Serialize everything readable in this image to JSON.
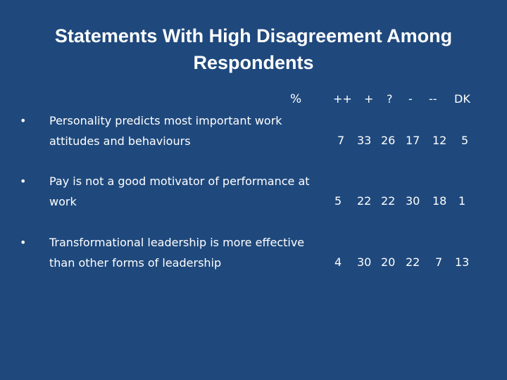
{
  "title": "Statements With High Disagreement Among Respondents",
  "columns": {
    "pct_label": "%",
    "headers": [
      "++",
      "+",
      "?",
      "-",
      "--",
      "DK"
    ]
  },
  "statements": [
    {
      "bullet": "•",
      "text": "Personality predicts most important work attitudes and behaviours",
      "values": [
        "7",
        "33",
        "26",
        "17",
        "12",
        "5"
      ]
    },
    {
      "bullet": "•",
      "text": "Pay is not a good motivator of performance at work",
      "values": [
        "5",
        "22",
        "22",
        "30",
        "18",
        "1"
      ]
    },
    {
      "bullet": "•",
      "text": "Transformational leadership is more effective than other forms of leadership",
      "values": [
        "4",
        "30",
        "20",
        "22",
        "7",
        "13"
      ]
    }
  ]
}
